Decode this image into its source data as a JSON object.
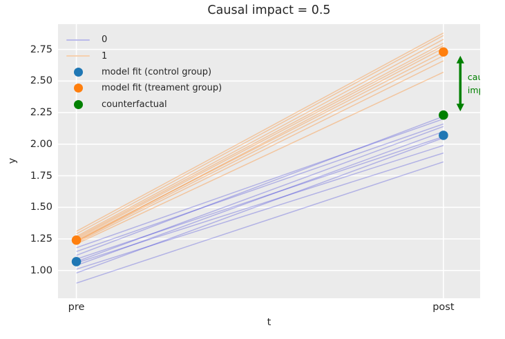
{
  "figure": {
    "title": "Causal impact = 0.5"
  },
  "chart_data": {
    "type": "line",
    "title": "Causal impact = 0.5",
    "xlabel": "t",
    "ylabel": "y",
    "x_categories": [
      "pre",
      "post"
    ],
    "x_values": [
      0,
      1
    ],
    "xlim": [
      -0.05,
      1.1
    ],
    "ylim": [
      0.78,
      2.95
    ],
    "yticks": [
      1.0,
      1.25,
      1.5,
      1.75,
      2.0,
      2.25,
      2.5,
      2.75
    ],
    "grid": true,
    "grid_color": "#ffffff",
    "plot_background": "#ebebeb",
    "legend": {
      "position": "upper left",
      "frame": false,
      "entries": [
        {
          "label": "0",
          "type": "line",
          "color": "#b9b9ea"
        },
        {
          "label": "1",
          "type": "line",
          "color": "#f6d0ae"
        },
        {
          "label": "model fit (control group)",
          "type": "marker",
          "color": "#1f77b4"
        },
        {
          "label": "model fit (treament group)",
          "type": "marker",
          "color": "#ff7f0e"
        },
        {
          "label": "counterfactual",
          "type": "marker",
          "color": "#008000"
        }
      ]
    },
    "posterior_lines": {
      "control": {
        "series_name": "0",
        "color": "rgba(45,45,215,0.30)",
        "line_width": 1.5,
        "segments_pre_post": [
          [
            0.9,
            1.86
          ],
          [
            0.98,
            2.05
          ],
          [
            1.01,
            1.93
          ],
          [
            1.04,
            2.1
          ],
          [
            1.06,
            1.99
          ],
          [
            1.07,
            2.14
          ],
          [
            1.09,
            2.06
          ],
          [
            1.12,
            2.22
          ],
          [
            1.15,
            2.16
          ],
          [
            1.18,
            2.2
          ]
        ]
      },
      "treatment": {
        "series_name": "1",
        "color": "rgba(255,127,14,0.35)",
        "line_width": 1.5,
        "segments_pre_post": [
          [
            1.21,
            2.57
          ],
          [
            1.22,
            2.66
          ],
          [
            1.23,
            2.7
          ],
          [
            1.23,
            2.76
          ],
          [
            1.24,
            2.73
          ],
          [
            1.25,
            2.78
          ],
          [
            1.26,
            2.8
          ],
          [
            1.27,
            2.83
          ],
          [
            1.29,
            2.86
          ],
          [
            1.31,
            2.88
          ]
        ]
      }
    },
    "model_fit_points": [
      {
        "name": "control-pre",
        "x": 0,
        "y": 1.07,
        "color": "#1f77b4"
      },
      {
        "name": "control-post",
        "x": 1,
        "y": 2.07,
        "color": "#1f77b4"
      },
      {
        "name": "treatment-pre",
        "x": 0,
        "y": 1.24,
        "color": "#ff7f0e"
      },
      {
        "name": "treatment-post",
        "x": 1,
        "y": 2.73,
        "color": "#ff7f0e"
      },
      {
        "name": "counterfactual-post",
        "x": 1,
        "y": 2.23,
        "color": "#008000"
      }
    ],
    "annotation": {
      "lines": [
        "causal",
        "impact"
      ],
      "color": "#008000",
      "font_size": 12.5,
      "text_x": 1.066,
      "arrow": {
        "x": 1.046,
        "y_from": 2.26,
        "y_to": 2.7,
        "double_headed": true
      }
    }
  }
}
